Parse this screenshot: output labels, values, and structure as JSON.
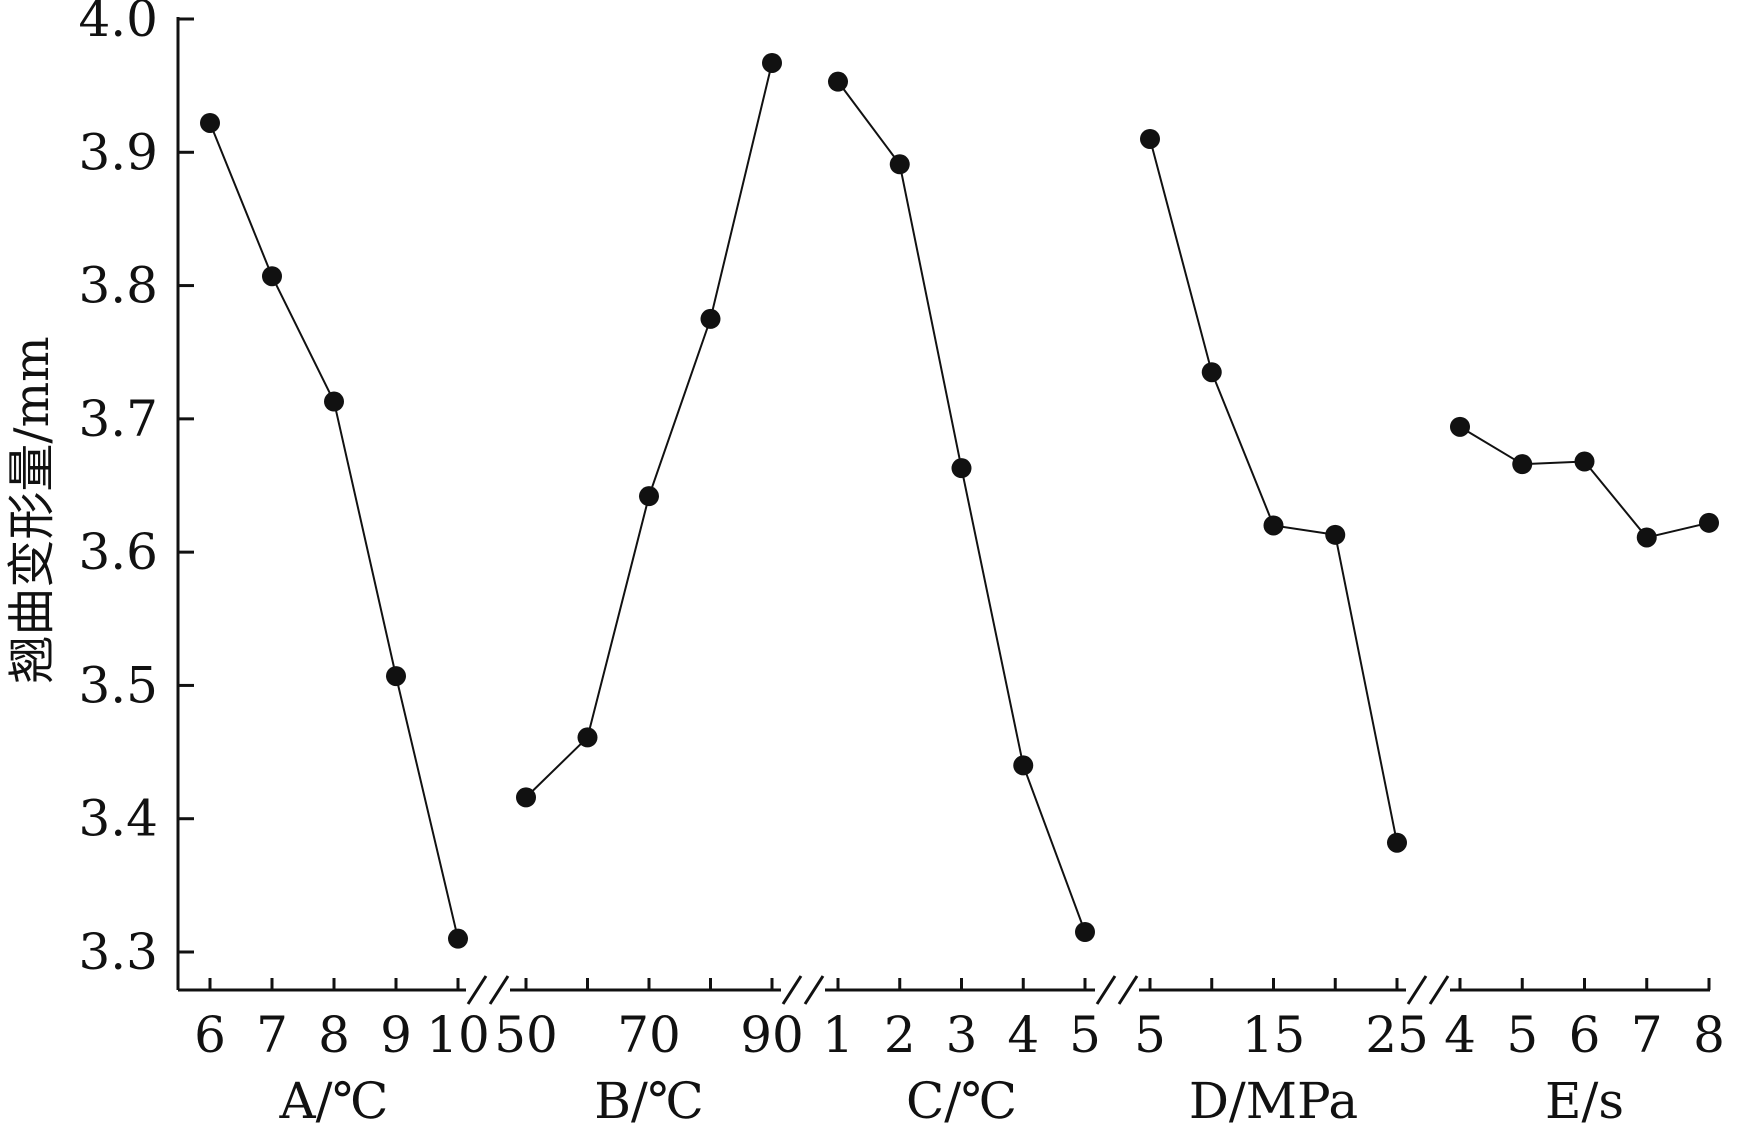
{
  "chart_data": {
    "type": "line",
    "ylabel": "翘曲变形量/mm",
    "ylim": [
      3.3,
      4.0
    ],
    "yticks": [
      "3.3",
      "3.4",
      "3.5",
      "3.6",
      "3.7",
      "3.8",
      "3.9",
      "4.0"
    ],
    "grid": false,
    "legend": "none",
    "color": "#111111",
    "groups": [
      {
        "label": "A/℃",
        "x": [
          6,
          7,
          8,
          9,
          10
        ],
        "tick_labels": [
          "6",
          "7",
          "8",
          "9",
          "10"
        ],
        "values": [
          3.922,
          3.807,
          3.713,
          3.507,
          3.31
        ]
      },
      {
        "label": "B/℃",
        "x": [
          50,
          60,
          70,
          80,
          90
        ],
        "tick_labels": [
          "50",
          "70",
          "90"
        ],
        "tick_values": [
          50,
          70,
          90
        ],
        "values": [
          3.416,
          3.461,
          3.642,
          3.775,
          3.967
        ]
      },
      {
        "label": "C/℃",
        "x": [
          1,
          2,
          3,
          4,
          5
        ],
        "tick_labels": [
          "1",
          "2",
          "3",
          "4",
          "5"
        ],
        "values": [
          3.953,
          3.891,
          3.663,
          3.44,
          3.315
        ]
      },
      {
        "label": "D/MPa",
        "x": [
          5,
          10,
          15,
          20,
          25
        ],
        "tick_labels": [
          "5",
          "15",
          "25"
        ],
        "tick_values": [
          5,
          15,
          25
        ],
        "values": [
          3.91,
          3.735,
          3.62,
          3.613,
          3.382
        ]
      },
      {
        "label": "E/s",
        "x": [
          4,
          5,
          6,
          7,
          8
        ],
        "tick_labels": [
          "4",
          "5",
          "6",
          "7",
          "8"
        ],
        "values": [
          3.694,
          3.666,
          3.668,
          3.611,
          3.622
        ]
      }
    ]
  }
}
